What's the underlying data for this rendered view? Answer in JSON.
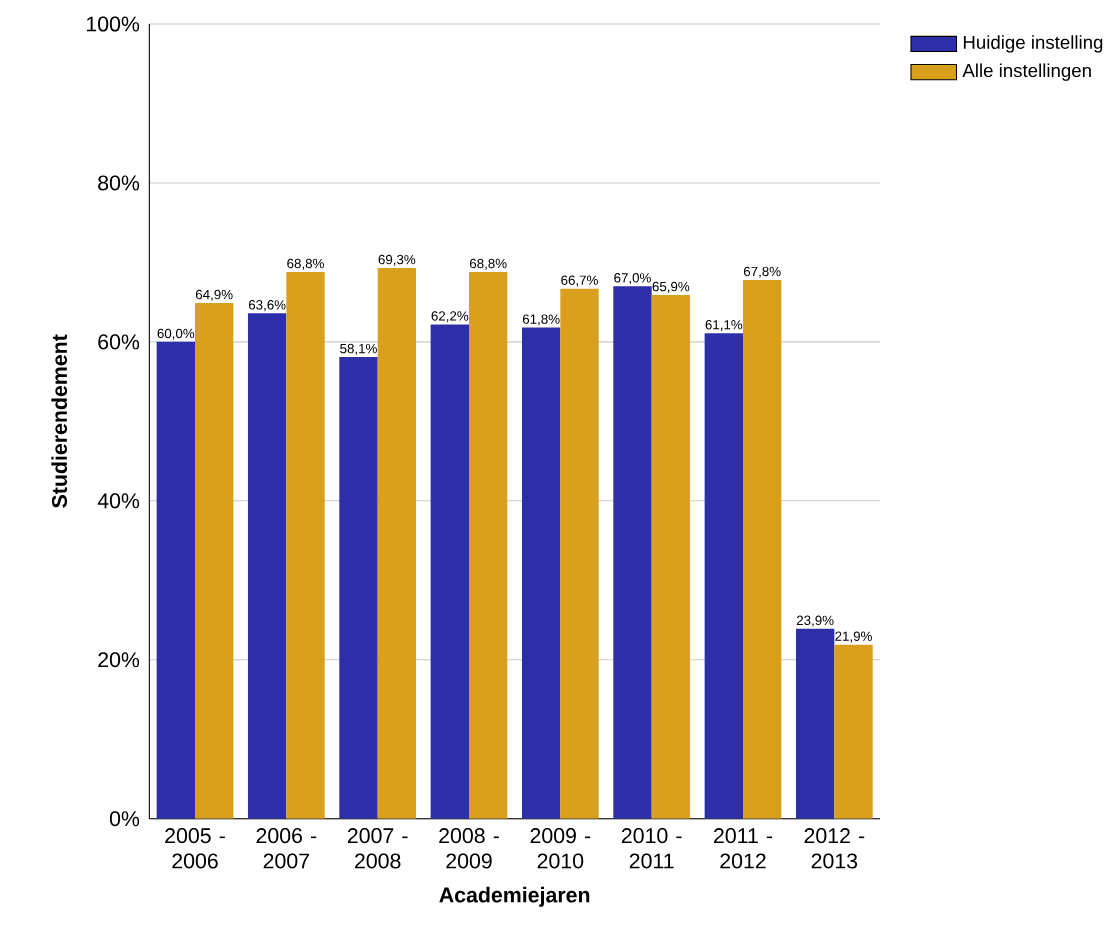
{
  "chart_data": {
    "type": "bar",
    "xlabel": "Academiejaren",
    "ylabel": "Studierendement",
    "categories": [
      "2005 - 2006",
      "2006 - 2007",
      "2007 - 2008",
      "2008 - 2009",
      "2009 - 2010",
      "2010 - 2011",
      "2011 - 2012",
      "2012 - 2013"
    ],
    "series": [
      {
        "name": "Huidige instelling",
        "color": "#2e2ea8",
        "values": [
          60.0,
          63.6,
          58.1,
          62.2,
          61.8,
          67.0,
          61.1,
          23.9
        ],
        "value_labels": [
          "60,0%",
          "63,6%",
          "58,1%",
          "62,2%",
          "61,8%",
          "67,0%",
          "61,1%",
          "23,9%"
        ]
      },
      {
        "name": "Alle instellingen",
        "color": "#d9a01e",
        "values": [
          64.9,
          68.8,
          69.3,
          68.8,
          66.7,
          65.9,
          67.8,
          21.9
        ],
        "value_labels": [
          "64,9%",
          "68,8%",
          "69,3%",
          "68,8%",
          "66,7%",
          "65,9%",
          "67,8%",
          "21,9%"
        ]
      }
    ],
    "ylim": [
      0,
      100
    ],
    "yticks": [
      {
        "value": 0,
        "label": "0%"
      },
      {
        "value": 20,
        "label": "20%"
      },
      {
        "value": 40,
        "label": "40%"
      },
      {
        "value": 60,
        "label": "60%"
      },
      {
        "value": 80,
        "label": "80%"
      },
      {
        "value": 100,
        "label": "100%"
      }
    ],
    "grid": "y",
    "legend": "top right"
  }
}
